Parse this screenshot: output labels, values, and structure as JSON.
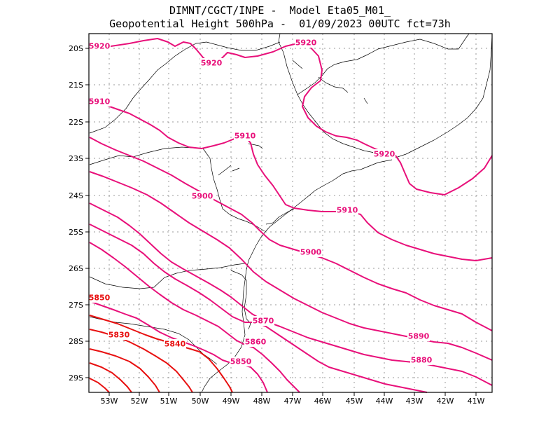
{
  "header": {
    "line1": "DIMNT/CGCT/INPE -  Model Eta05_M01_",
    "line2": "Geopotential Height 500hPa -  01/09/2023 00UTC fct=73h"
  },
  "axes": {
    "lat_labels": [
      "20S",
      "21S",
      "22S",
      "23S",
      "24S",
      "25S",
      "26S",
      "27S",
      "28S",
      "29S"
    ],
    "lon_labels": [
      "53W",
      "52W",
      "51W",
      "50W",
      "49W",
      "48W",
      "47W",
      "46W",
      "45W",
      "44W",
      "43W",
      "42W",
      "41W"
    ]
  },
  "colors": {
    "high_contours": "#e8107a",
    "low_contours": "#e81010",
    "coastline": "#000000",
    "grid": "#999999"
  },
  "contours": [
    {
      "value": 5920,
      "labels": [
        "5920",
        "5920",
        "5920",
        "5920"
      ]
    },
    {
      "value": 5910,
      "labels": [
        "5910",
        "5910",
        "5910"
      ]
    },
    {
      "value": 5900,
      "labels": [
        "5900",
        "5900"
      ]
    },
    {
      "value": 5890,
      "labels": [
        "5890"
      ]
    },
    {
      "value": 5880,
      "labels": [
        "5880"
      ]
    },
    {
      "value": 5870,
      "labels": [
        "5870"
      ]
    },
    {
      "value": 5860,
      "labels": [
        "5860"
      ]
    },
    {
      "value": 5850,
      "labels": [
        "5850",
        "5850"
      ]
    },
    {
      "value": 5840,
      "labels": [
        "5840"
      ]
    },
    {
      "value": 5830,
      "labels": [
        "5830"
      ]
    }
  ]
}
